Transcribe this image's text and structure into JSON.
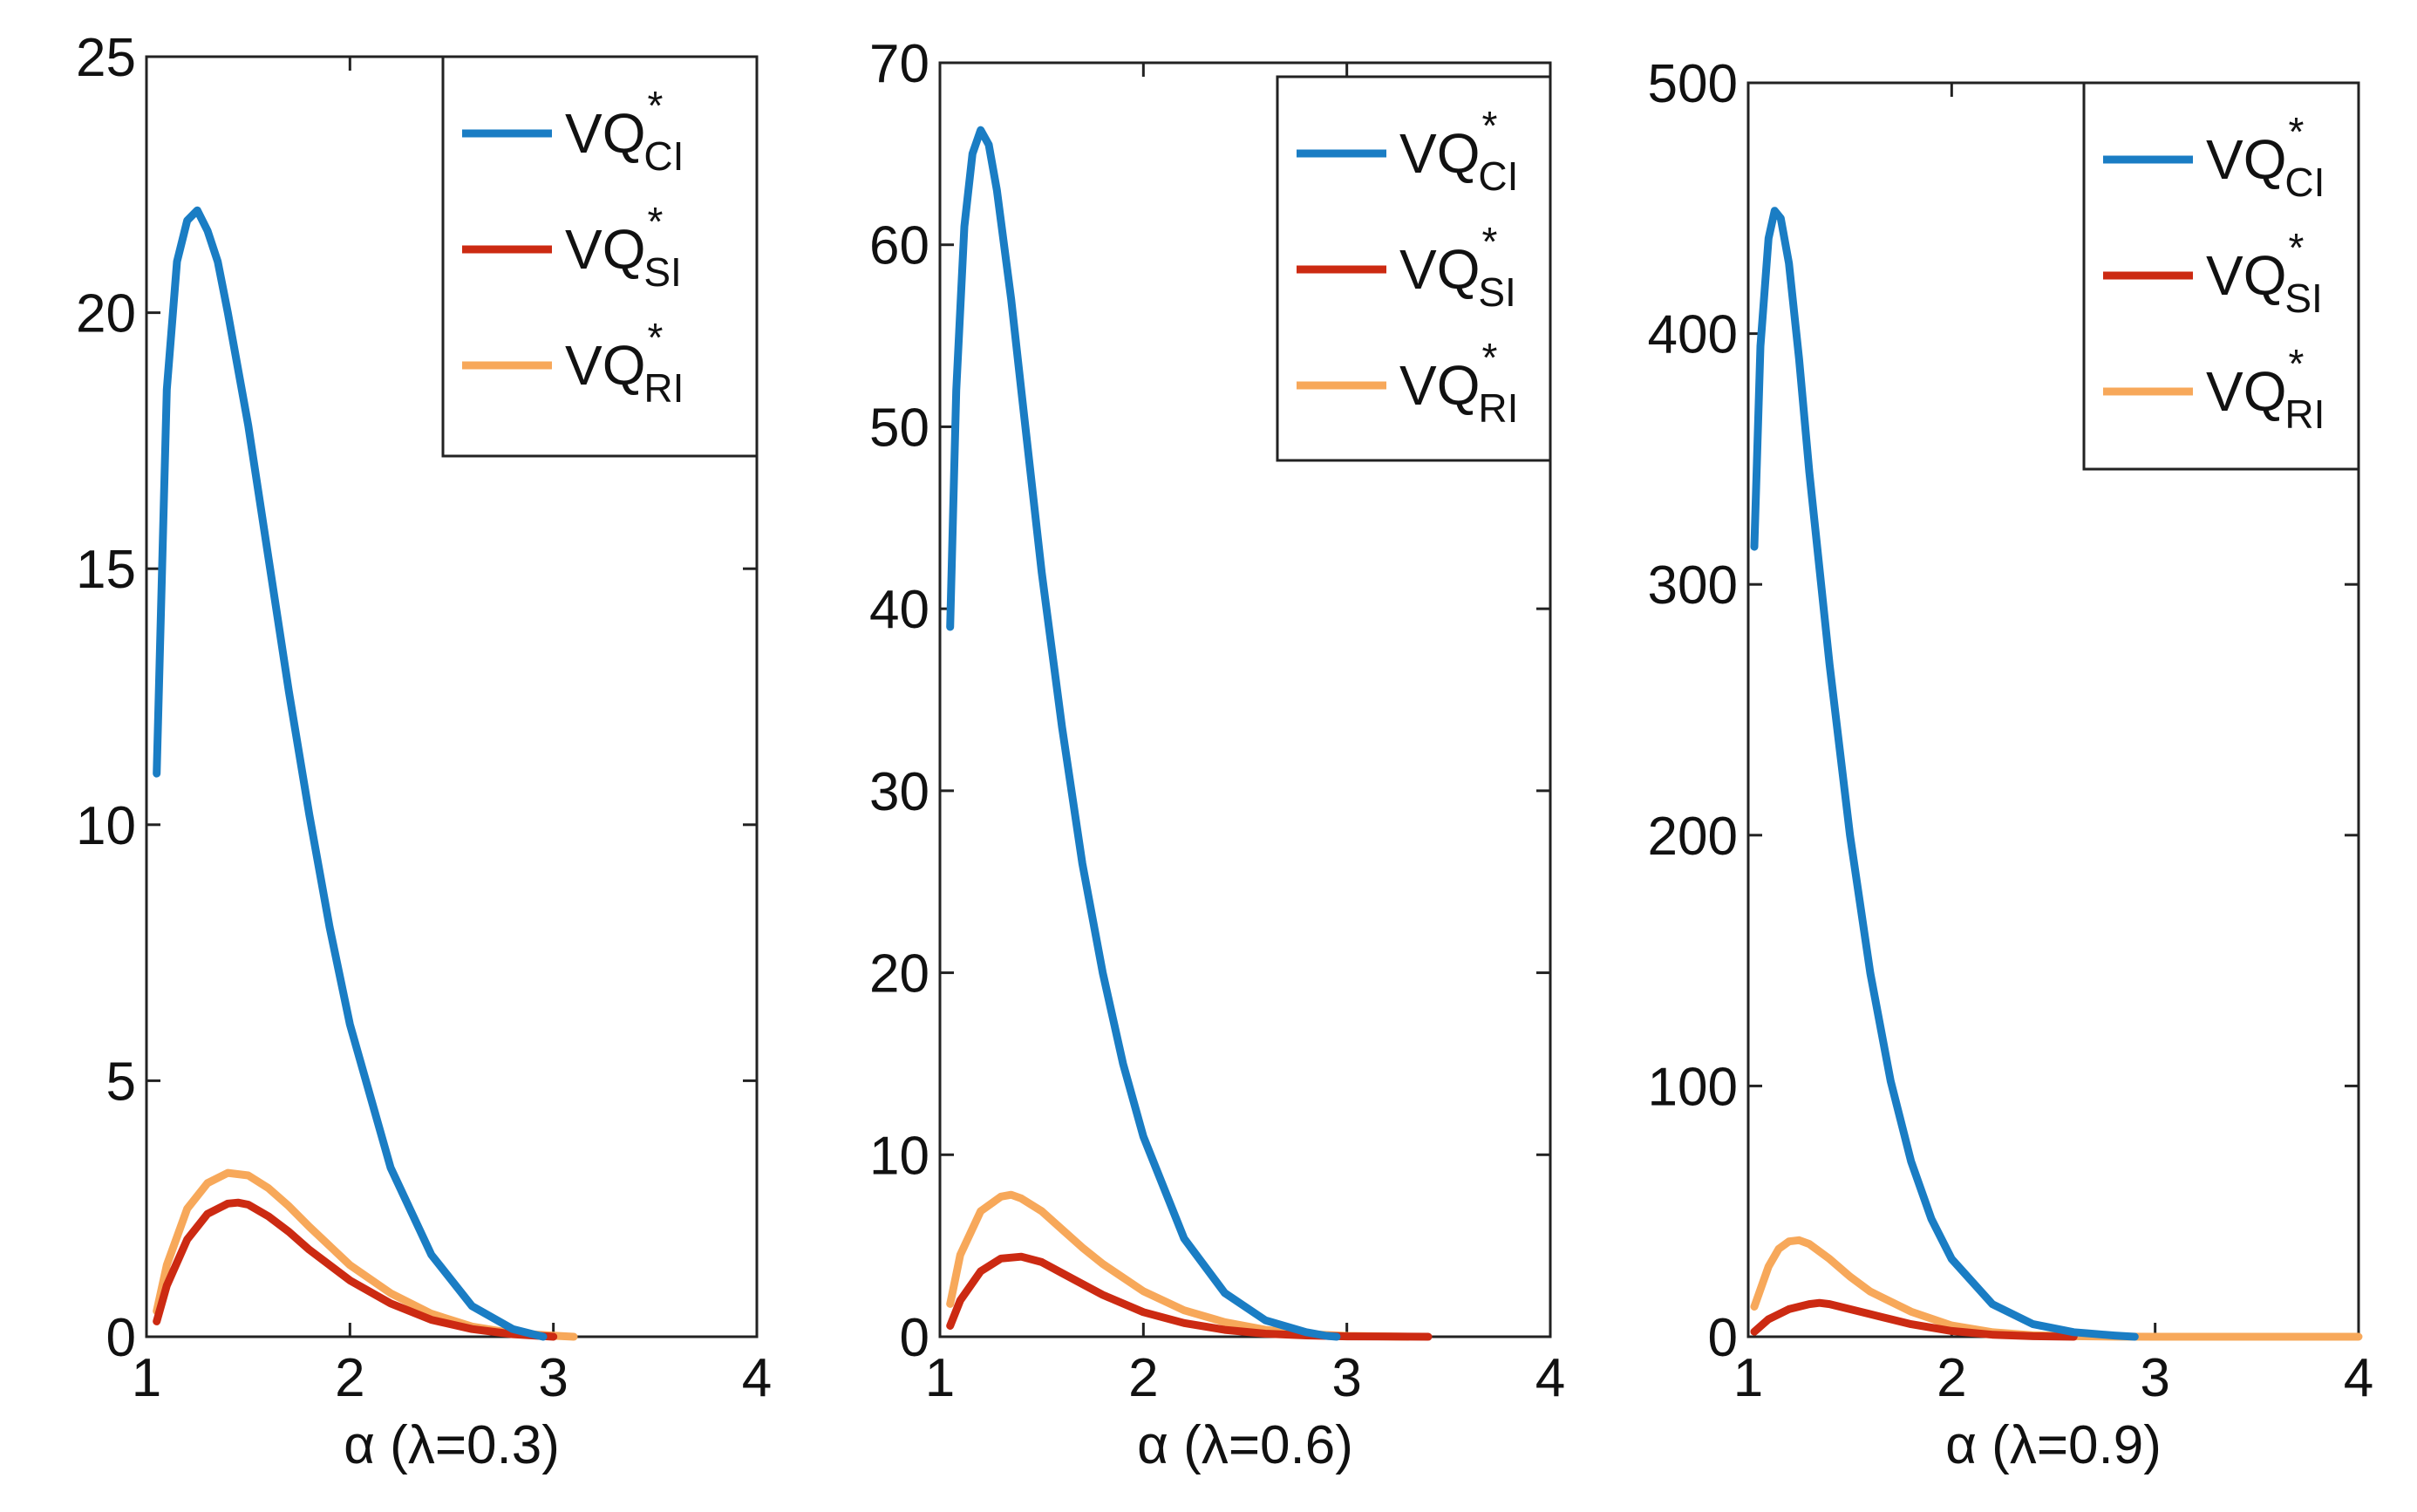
{
  "colors": {
    "CI": "#1a7dc4",
    "SI": "#cc2a12",
    "RI": "#f7a85a"
  },
  "chart_data": [
    {
      "type": "line",
      "xlabel": "α (λ=0.3)",
      "xlim": [
        1,
        4
      ],
      "ylim": [
        0,
        25
      ],
      "xticks": [
        "1",
        "2",
        "3",
        "4"
      ],
      "yticks": [
        "0",
        "5",
        "10",
        "15",
        "20",
        "25"
      ],
      "legend_position": "top-right",
      "legend": [
        {
          "key": "CI",
          "base": "VQ",
          "sup": "*",
          "sub": "CI"
        },
        {
          "key": "SI",
          "base": "VQ",
          "sup": "*",
          "sub": "SI"
        },
        {
          "key": "RI",
          "base": "VQ",
          "sup": "*",
          "sub": "RI"
        }
      ],
      "series": [
        {
          "name": "VQ*CI",
          "key": "CI",
          "x": [
            1.05,
            1.1,
            1.15,
            1.2,
            1.25,
            1.3,
            1.35,
            1.4,
            1.5,
            1.6,
            1.7,
            1.8,
            1.9,
            2.0,
            2.2,
            2.4,
            2.6,
            2.8,
            2.9,
            2.95
          ],
          "y": [
            11,
            18.5,
            21,
            21.8,
            22,
            21.6,
            21,
            20,
            17.8,
            15.2,
            12.6,
            10.2,
            8.0,
            6.1,
            3.3,
            1.6,
            0.6,
            0.15,
            0.05,
            0
          ]
        },
        {
          "name": "VQ*SI",
          "key": "SI",
          "x": [
            1.05,
            1.1,
            1.2,
            1.3,
            1.4,
            1.45,
            1.5,
            1.6,
            1.7,
            1.8,
            2.0,
            2.2,
            2.4,
            2.6,
            2.8,
            3.0
          ],
          "y": [
            0.3,
            1.0,
            1.9,
            2.4,
            2.6,
            2.62,
            2.58,
            2.35,
            2.05,
            1.7,
            1.1,
            0.65,
            0.33,
            0.15,
            0.05,
            0
          ]
        },
        {
          "name": "VQ*RI",
          "key": "RI",
          "x": [
            1.05,
            1.1,
            1.2,
            1.3,
            1.4,
            1.5,
            1.6,
            1.7,
            1.8,
            2.0,
            2.2,
            2.4,
            2.6,
            2.8,
            3.0,
            3.1
          ],
          "y": [
            0.5,
            1.4,
            2.5,
            3.0,
            3.2,
            3.15,
            2.9,
            2.55,
            2.15,
            1.4,
            0.85,
            0.45,
            0.2,
            0.07,
            0.02,
            0
          ]
        }
      ]
    },
    {
      "type": "line",
      "xlabel": "α (λ=0.6)",
      "xlim": [
        1,
        4
      ],
      "ylim": [
        0,
        70
      ],
      "xticks": [
        "1",
        "2",
        "3",
        "4"
      ],
      "yticks": [
        "0",
        "10",
        "20",
        "30",
        "40",
        "50",
        "60",
        "70"
      ],
      "legend_position": "top-right",
      "legend": [
        {
          "key": "CI",
          "base": "VQ",
          "sup": "*",
          "sub": "CI"
        },
        {
          "key": "SI",
          "base": "VQ",
          "sup": "*",
          "sub": "SI"
        },
        {
          "key": "RI",
          "base": "VQ",
          "sup": "*",
          "sub": "RI"
        }
      ],
      "series": [
        {
          "name": "VQ*CI",
          "key": "CI",
          "x": [
            1.05,
            1.08,
            1.12,
            1.16,
            1.2,
            1.24,
            1.28,
            1.35,
            1.4,
            1.5,
            1.6,
            1.7,
            1.8,
            1.9,
            2.0,
            2.2,
            2.4,
            2.6,
            2.8,
            2.9,
            2.95
          ],
          "y": [
            39,
            52,
            61,
            65,
            66.3,
            65.5,
            63,
            57,
            52,
            42,
            33.5,
            26,
            20,
            15,
            11,
            5.4,
            2.4,
            0.9,
            0.25,
            0.05,
            0
          ]
        },
        {
          "name": "VQ*SI",
          "key": "SI",
          "x": [
            1.05,
            1.1,
            1.2,
            1.3,
            1.4,
            1.5,
            1.6,
            1.7,
            1.8,
            2.0,
            2.2,
            2.4,
            2.6,
            2.8,
            3.0,
            3.2,
            3.4
          ],
          "y": [
            0.6,
            2.0,
            3.6,
            4.3,
            4.4,
            4.1,
            3.5,
            2.9,
            2.3,
            1.35,
            0.75,
            0.38,
            0.17,
            0.07,
            0.02,
            0.01,
            0
          ]
        },
        {
          "name": "VQ*RI",
          "key": "RI",
          "x": [
            1.05,
            1.1,
            1.2,
            1.3,
            1.35,
            1.4,
            1.5,
            1.6,
            1.7,
            1.8,
            2.0,
            2.2,
            2.4,
            2.6,
            2.8,
            3.0,
            3.3
          ],
          "y": [
            1.8,
            4.5,
            6.9,
            7.7,
            7.8,
            7.6,
            6.9,
            5.9,
            4.9,
            4.0,
            2.5,
            1.45,
            0.8,
            0.38,
            0.15,
            0.05,
            0
          ]
        }
      ]
    },
    {
      "type": "line",
      "xlabel": "α (λ=0.9)",
      "xlim": [
        1,
        4
      ],
      "ylim": [
        0,
        500
      ],
      "xticks": [
        "1",
        "2",
        "3",
        "4"
      ],
      "yticks": [
        "0",
        "100",
        "200",
        "300",
        "400",
        "500"
      ],
      "legend_position": "top-right",
      "legend": [
        {
          "key": "CI",
          "base": "VQ",
          "sup": "*",
          "sub": "CI"
        },
        {
          "key": "SI",
          "base": "VQ",
          "sup": "*",
          "sub": "SI"
        },
        {
          "key": "RI",
          "base": "VQ",
          "sup": "*",
          "sub": "RI"
        }
      ],
      "series": [
        {
          "name": "VQ*CI",
          "key": "CI",
          "x": [
            1.03,
            1.06,
            1.1,
            1.13,
            1.16,
            1.2,
            1.25,
            1.3,
            1.4,
            1.5,
            1.6,
            1.7,
            1.8,
            1.9,
            2.0,
            2.2,
            2.4,
            2.6,
            2.8,
            2.9
          ],
          "y": [
            315,
            395,
            438,
            449,
            446,
            428,
            390,
            345,
            268,
            200,
            145,
            102,
            70,
            47,
            31,
            13,
            5,
            1.8,
            0.5,
            0
          ]
        },
        {
          "name": "VQ*SI",
          "key": "SI",
          "x": [
            1.03,
            1.1,
            1.2,
            1.3,
            1.35,
            1.4,
            1.5,
            1.6,
            1.7,
            1.8,
            2.0,
            2.2,
            2.4,
            2.6
          ],
          "y": [
            2,
            7,
            11,
            13,
            13.5,
            13,
            11,
            9,
            7,
            5,
            2.3,
            0.8,
            0.2,
            0
          ]
        },
        {
          "name": "VQ*RI",
          "key": "RI",
          "x": [
            1.03,
            1.1,
            1.15,
            1.2,
            1.25,
            1.3,
            1.4,
            1.5,
            1.6,
            1.8,
            2.0,
            2.2,
            2.4,
            2.6,
            2.8,
            3.0,
            3.5,
            4.0
          ],
          "y": [
            12,
            28,
            35,
            38,
            38.5,
            37,
            31,
            24,
            18,
            10,
            4.5,
            1.8,
            0.6,
            0.2,
            0.05,
            0,
            0,
            0
          ]
        }
      ]
    }
  ]
}
